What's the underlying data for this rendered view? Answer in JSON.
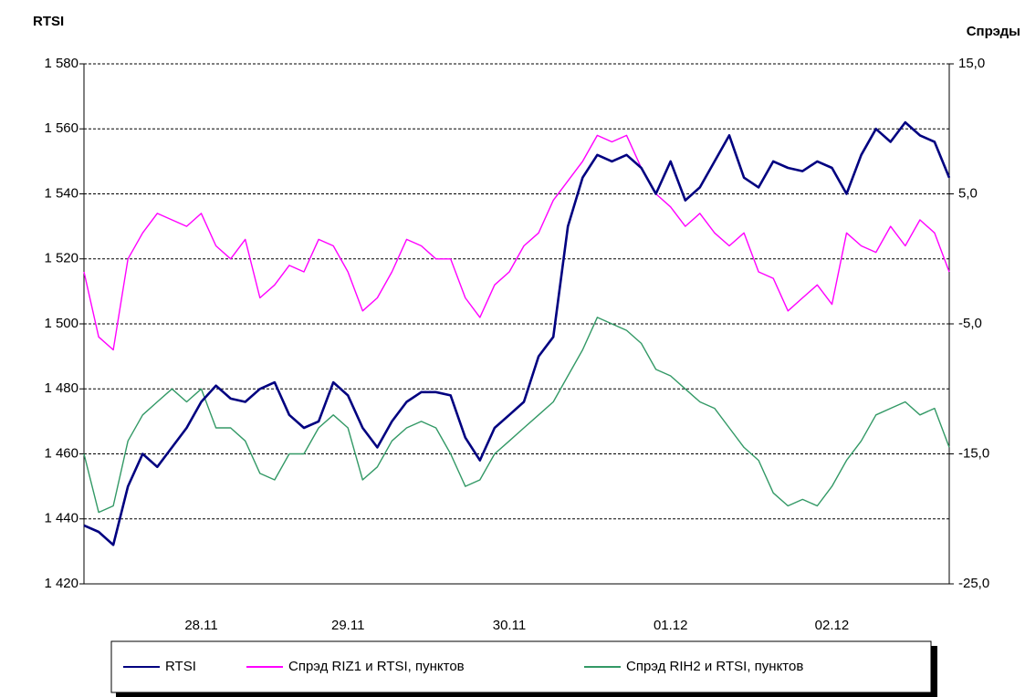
{
  "chart_data": {
    "type": "line",
    "ylabel": "RTSI",
    "y2label": "Спрэды",
    "categories": [
      null,
      null,
      null,
      null,
      null,
      null,
      null,
      null,
      "28.11",
      null,
      null,
      null,
      null,
      null,
      null,
      null,
      null,
      null,
      "29.11",
      null,
      null,
      null,
      null,
      null,
      null,
      null,
      null,
      null,
      null,
      "30.11",
      null,
      null,
      null,
      null,
      null,
      null,
      null,
      null,
      null,
      null,
      "01.12",
      null,
      null,
      null,
      null,
      null,
      null,
      null,
      null,
      null,
      null,
      "02.12",
      null,
      null,
      null,
      null,
      null,
      null,
      null,
      null
    ],
    "series": [
      {
        "name": "RTSI",
        "color": "#000080",
        "axis": "y",
        "values": [
          1438,
          1436,
          1432,
          1450,
          1460,
          1456,
          1462,
          1468,
          1476,
          1481,
          1477,
          1476,
          1480,
          1482,
          1472,
          1468,
          1470,
          1482,
          1478,
          1468,
          1462,
          1470,
          1476,
          1479,
          1479,
          1478,
          1465,
          1458,
          1468,
          1472,
          1476,
          1490,
          1496,
          1530,
          1545,
          1552,
          1550,
          1552,
          1548,
          1540,
          1550,
          1538,
          1542,
          1550,
          1558,
          1545,
          1542,
          1550,
          1548,
          1547,
          1550,
          1548,
          1540,
          1552,
          1560,
          1556,
          1562,
          1558,
          1556,
          1545
        ]
      },
      {
        "name": "Спрэд RIZ1 и RTSI, пунктов",
        "color": "#ff00ff",
        "axis": "y2",
        "values": [
          -1,
          -6,
          -7,
          0,
          2,
          3.5,
          3,
          2.5,
          3.5,
          1,
          0,
          1.5,
          -3,
          -2,
          -0.5,
          -1,
          1.5,
          1,
          -1,
          -4,
          -3,
          -1,
          1.5,
          1,
          0,
          0,
          -3,
          -4.5,
          -2,
          -1,
          1,
          2,
          4.5,
          6,
          7.5,
          9.5,
          9,
          9.5,
          7,
          5,
          4,
          2.5,
          3.5,
          2,
          1,
          2,
          -1,
          -1.5,
          -4,
          -3,
          -2,
          -3.5,
          2,
          1,
          0.5,
          2.5,
          1,
          3,
          2,
          -1
        ]
      },
      {
        "name": "Спрэд RIH2 и RTSI, пунктов",
        "color": "#339966",
        "axis": "y2",
        "values": [
          -15,
          -19.5,
          -19,
          -14,
          -12,
          -11,
          -10,
          -11,
          -10,
          -13,
          -13,
          -14,
          -16.5,
          -17,
          -15,
          -15,
          -13,
          -12,
          -13,
          -17,
          -16,
          -14,
          -13,
          -12.5,
          -13,
          -15,
          -17.5,
          -17,
          -15,
          -14,
          -13,
          -12,
          -11,
          -9,
          -7,
          -4.5,
          -5,
          -5.5,
          -6.5,
          -8.5,
          -9,
          -10,
          -11,
          -11.5,
          -13,
          -14.5,
          -15.5,
          -18,
          -19,
          -18.5,
          -19,
          -17.5,
          -15.5,
          -14,
          -12,
          -11.5,
          -11,
          -12,
          -11.5,
          -14.5
        ]
      }
    ],
    "ylim": [
      1420,
      1580
    ],
    "yticks": [
      {
        "value": 1420,
        "label": "1 420"
      },
      {
        "value": 1440,
        "label": "1 440"
      },
      {
        "value": 1460,
        "label": "1 460"
      },
      {
        "value": 1480,
        "label": "1 480"
      },
      {
        "value": 1500,
        "label": "1 500"
      },
      {
        "value": 1520,
        "label": "1 520"
      },
      {
        "value": 1540,
        "label": "1 540"
      },
      {
        "value": 1560,
        "label": "1 560"
      },
      {
        "value": 1580,
        "label": "1 580"
      }
    ],
    "y2lim": [
      -25,
      15
    ],
    "y2ticks": [
      {
        "value": -25,
        "label": "-25,0"
      },
      {
        "value": -15,
        "label": "-15,0"
      },
      {
        "value": -5,
        "label": "-5,0"
      },
      {
        "value": 5,
        "label": "5,0"
      },
      {
        "value": 15,
        "label": "15,0"
      }
    ],
    "grid": true,
    "legend": "bottom"
  }
}
